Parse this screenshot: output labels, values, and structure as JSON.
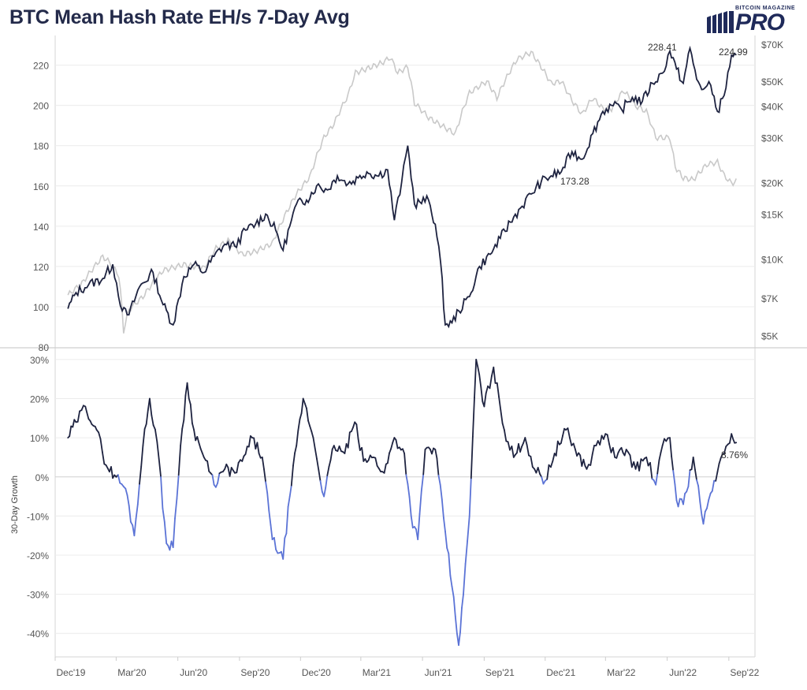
{
  "title": "BTC Mean Hash Rate EH/s 7-Day Avg",
  "logo": {
    "small": "BITCOIN MAGAZINE",
    "big": "PRO"
  },
  "colors": {
    "hashrate": "#1e2340",
    "price": "#c9c9c9",
    "growth_pos": "#1e2340",
    "growth_neg": "#5b73d6",
    "grid": "#ececec",
    "axis_text": "#555555"
  },
  "chart_data": [
    {
      "type": "line",
      "ylim": [
        80,
        232
      ],
      "yticks": [
        "80",
        "100",
        "120",
        "140",
        "160",
        "180",
        "200",
        "220"
      ],
      "y2_scale": "log",
      "y2lim": [
        4500,
        72000
      ],
      "y2ticks": [
        "$5K",
        "$7K",
        "$10K",
        "$15K",
        "$20K",
        "$30K",
        "$40K",
        "$50K",
        "$70K"
      ],
      "annotations": [
        "228.41",
        "224.99",
        "173.28"
      ],
      "series": [
        {
          "role": "hashrate",
          "x": [
            "2019-12-20",
            "2020-01-01",
            "2020-01-20",
            "2020-02-10",
            "2020-02-25",
            "2020-03-10",
            "2020-03-20",
            "2020-04-05",
            "2020-04-25",
            "2020-05-10",
            "2020-05-25",
            "2020-06-10",
            "2020-06-25",
            "2020-07-10",
            "2020-07-25",
            "2020-08-10",
            "2020-08-25",
            "2020-09-10",
            "2020-09-25",
            "2020-10-10",
            "2020-10-25",
            "2020-11-05",
            "2020-11-15",
            "2020-11-25",
            "2020-12-10",
            "2020-12-25",
            "2021-01-10",
            "2021-01-25",
            "2021-02-10",
            "2021-02-25",
            "2021-03-10",
            "2021-03-25",
            "2021-04-10",
            "2021-04-20",
            "2021-05-01",
            "2021-05-10",
            "2021-05-20",
            "2021-05-28",
            "2021-06-10",
            "2021-06-20",
            "2021-06-28",
            "2021-07-05",
            "2021-07-15",
            "2021-07-25",
            "2021-08-10",
            "2021-08-25",
            "2021-09-10",
            "2021-09-25",
            "2021-10-10",
            "2021-10-25",
            "2021-11-10",
            "2021-11-25",
            "2021-12-10",
            "2021-12-25",
            "2022-01-10",
            "2022-01-25",
            "2022-02-10",
            "2022-02-25",
            "2022-03-10",
            "2022-03-25",
            "2022-04-10",
            "2022-04-25",
            "2022-05-10",
            "2022-05-25",
            "2022-06-05",
            "2022-06-15",
            "2022-06-25",
            "2022-07-05",
            "2022-07-15",
            "2022-07-25",
            "2022-08-05",
            "2022-08-15",
            "2022-08-25",
            "2022-09-05",
            "2022-09-12"
          ],
          "y": [
            99,
            107,
            111,
            114,
            121,
            98,
            96,
            110,
            117,
            101,
            91,
            115,
            121,
            117,
            125,
            131,
            130,
            138,
            141,
            146,
            138,
            128,
            140,
            151,
            153,
            160,
            158,
            165,
            161,
            164,
            167,
            165,
            168,
            143,
            162,
            180,
            151,
            152,
            153,
            141,
            122,
            91,
            92,
            98,
            105,
            120,
            126,
            134,
            142,
            149,
            156,
            162,
            165,
            167,
            177,
            173.28,
            186,
            197,
            200,
            198,
            204,
            202,
            211,
            216,
            227,
            218,
            211,
            228.41,
            213,
            208,
            210,
            197,
            205,
            225,
            224.99
          ]
        },
        {
          "role": "price",
          "x": [
            "2019-12-20",
            "2020-01-10",
            "2020-02-10",
            "2020-02-20",
            "2020-03-05",
            "2020-03-12",
            "2020-03-20",
            "2020-04-10",
            "2020-05-10",
            "2020-06-10",
            "2020-07-10",
            "2020-07-28",
            "2020-08-15",
            "2020-09-05",
            "2020-09-25",
            "2020-10-20",
            "2020-11-10",
            "2020-11-25",
            "2020-12-15",
            "2021-01-05",
            "2021-01-20",
            "2021-02-10",
            "2021-02-21",
            "2021-03-10",
            "2021-04-01",
            "2021-04-14",
            "2021-04-25",
            "2021-05-10",
            "2021-05-20",
            "2021-06-10",
            "2021-06-25",
            "2021-07-20",
            "2021-08-10",
            "2021-09-05",
            "2021-09-20",
            "2021-10-10",
            "2021-10-20",
            "2021-11-10",
            "2021-11-25",
            "2021-12-10",
            "2021-12-25",
            "2022-01-10",
            "2022-01-25",
            "2022-02-10",
            "2022-02-25",
            "2022-03-10",
            "2022-03-28",
            "2022-04-15",
            "2022-05-01",
            "2022-05-15",
            "2022-06-05",
            "2022-06-13",
            "2022-06-25",
            "2022-07-10",
            "2022-07-30",
            "2022-08-15",
            "2022-08-25",
            "2022-09-05",
            "2022-09-12"
          ],
          "y": [
            7200,
            8000,
            10200,
            9700,
            8600,
            5200,
            6300,
            7100,
            9000,
            9500,
            9200,
            11000,
            11800,
            10400,
            10700,
            11500,
            15200,
            18000,
            21000,
            30000,
            34000,
            44000,
            54000,
            56000,
            59000,
            62000,
            54000,
            57000,
            41000,
            36000,
            34000,
            31000,
            45000,
            50000,
            43000,
            55000,
            61000,
            65000,
            57000,
            49000,
            50000,
            42000,
            37000,
            43000,
            39000,
            39000,
            46000,
            40000,
            38000,
            30000,
            30000,
            23000,
            20800,
            20500,
            23500,
            24000,
            21300,
            19800,
            20200
          ]
        }
      ]
    },
    {
      "type": "line",
      "ylabel": "30-Day Growth",
      "ylim": [
        -45,
        32
      ],
      "yticks": [
        "-40%",
        "-30%",
        "-20%",
        "-10%",
        "0%",
        "10%",
        "20%",
        "30%"
      ],
      "xticks": [
        "Dec'19",
        "Mar'20",
        "Jun'20",
        "Sep'20",
        "Dec'20",
        "Mar'21",
        "Jun'21",
        "Sep'21",
        "Dec'21",
        "Mar'22",
        "Jun'22",
        "Sep'22"
      ],
      "annotations": [
        "8.76%"
      ],
      "series": [
        {
          "role": "growth",
          "x": [
            "2019-12-20",
            "2020-01-01",
            "2020-01-15",
            "2020-02-01",
            "2020-02-15",
            "2020-03-01",
            "2020-03-15",
            "2020-03-28",
            "2020-04-10",
            "2020-04-20",
            "2020-05-01",
            "2020-05-15",
            "2020-05-25",
            "2020-06-05",
            "2020-06-15",
            "2020-06-25",
            "2020-07-10",
            "2020-07-25",
            "2020-08-10",
            "2020-08-25",
            "2020-09-05",
            "2020-09-20",
            "2020-10-05",
            "2020-10-20",
            "2020-11-05",
            "2020-11-15",
            "2020-11-25",
            "2020-12-05",
            "2020-12-20",
            "2021-01-05",
            "2021-01-20",
            "2021-02-05",
            "2021-02-20",
            "2021-03-05",
            "2021-03-20",
            "2021-04-05",
            "2021-04-20",
            "2021-05-05",
            "2021-05-15",
            "2021-05-25",
            "2021-06-05",
            "2021-06-20",
            "2021-07-05",
            "2021-07-15",
            "2021-07-25",
            "2021-08-01",
            "2021-08-10",
            "2021-08-20",
            "2021-09-01",
            "2021-09-15",
            "2021-10-01",
            "2021-10-15",
            "2021-11-01",
            "2021-11-15",
            "2021-12-01",
            "2021-12-15",
            "2022-01-01",
            "2022-01-15",
            "2022-02-01",
            "2022-02-15",
            "2022-03-01",
            "2022-03-15",
            "2022-04-01",
            "2022-04-15",
            "2022-05-01",
            "2022-05-15",
            "2022-05-25",
            "2022-06-05",
            "2022-06-15",
            "2022-06-25",
            "2022-07-10",
            "2022-07-25",
            "2022-08-10",
            "2022-08-25",
            "2022-09-05",
            "2022-09-12"
          ],
          "y": [
            10,
            14,
            18,
            12,
            3,
            0,
            -3,
            -15,
            8,
            20,
            9,
            -17,
            -18,
            8,
            24,
            12,
            5,
            -2,
            2,
            1,
            4,
            10,
            5,
            -16,
            -21,
            -5,
            8,
            20,
            10,
            -5,
            8,
            6,
            14,
            4,
            5,
            1,
            10,
            6,
            -10,
            -16,
            7,
            7,
            -14,
            -28,
            -43,
            -30,
            -10,
            30,
            18,
            28,
            12,
            5,
            10,
            2,
            -1,
            6,
            12,
            7,
            2,
            8,
            11,
            5,
            7,
            2,
            5,
            -2,
            8,
            10,
            -6,
            -7,
            5,
            -12,
            -1,
            6,
            11,
            8.76
          ]
        }
      ]
    }
  ]
}
